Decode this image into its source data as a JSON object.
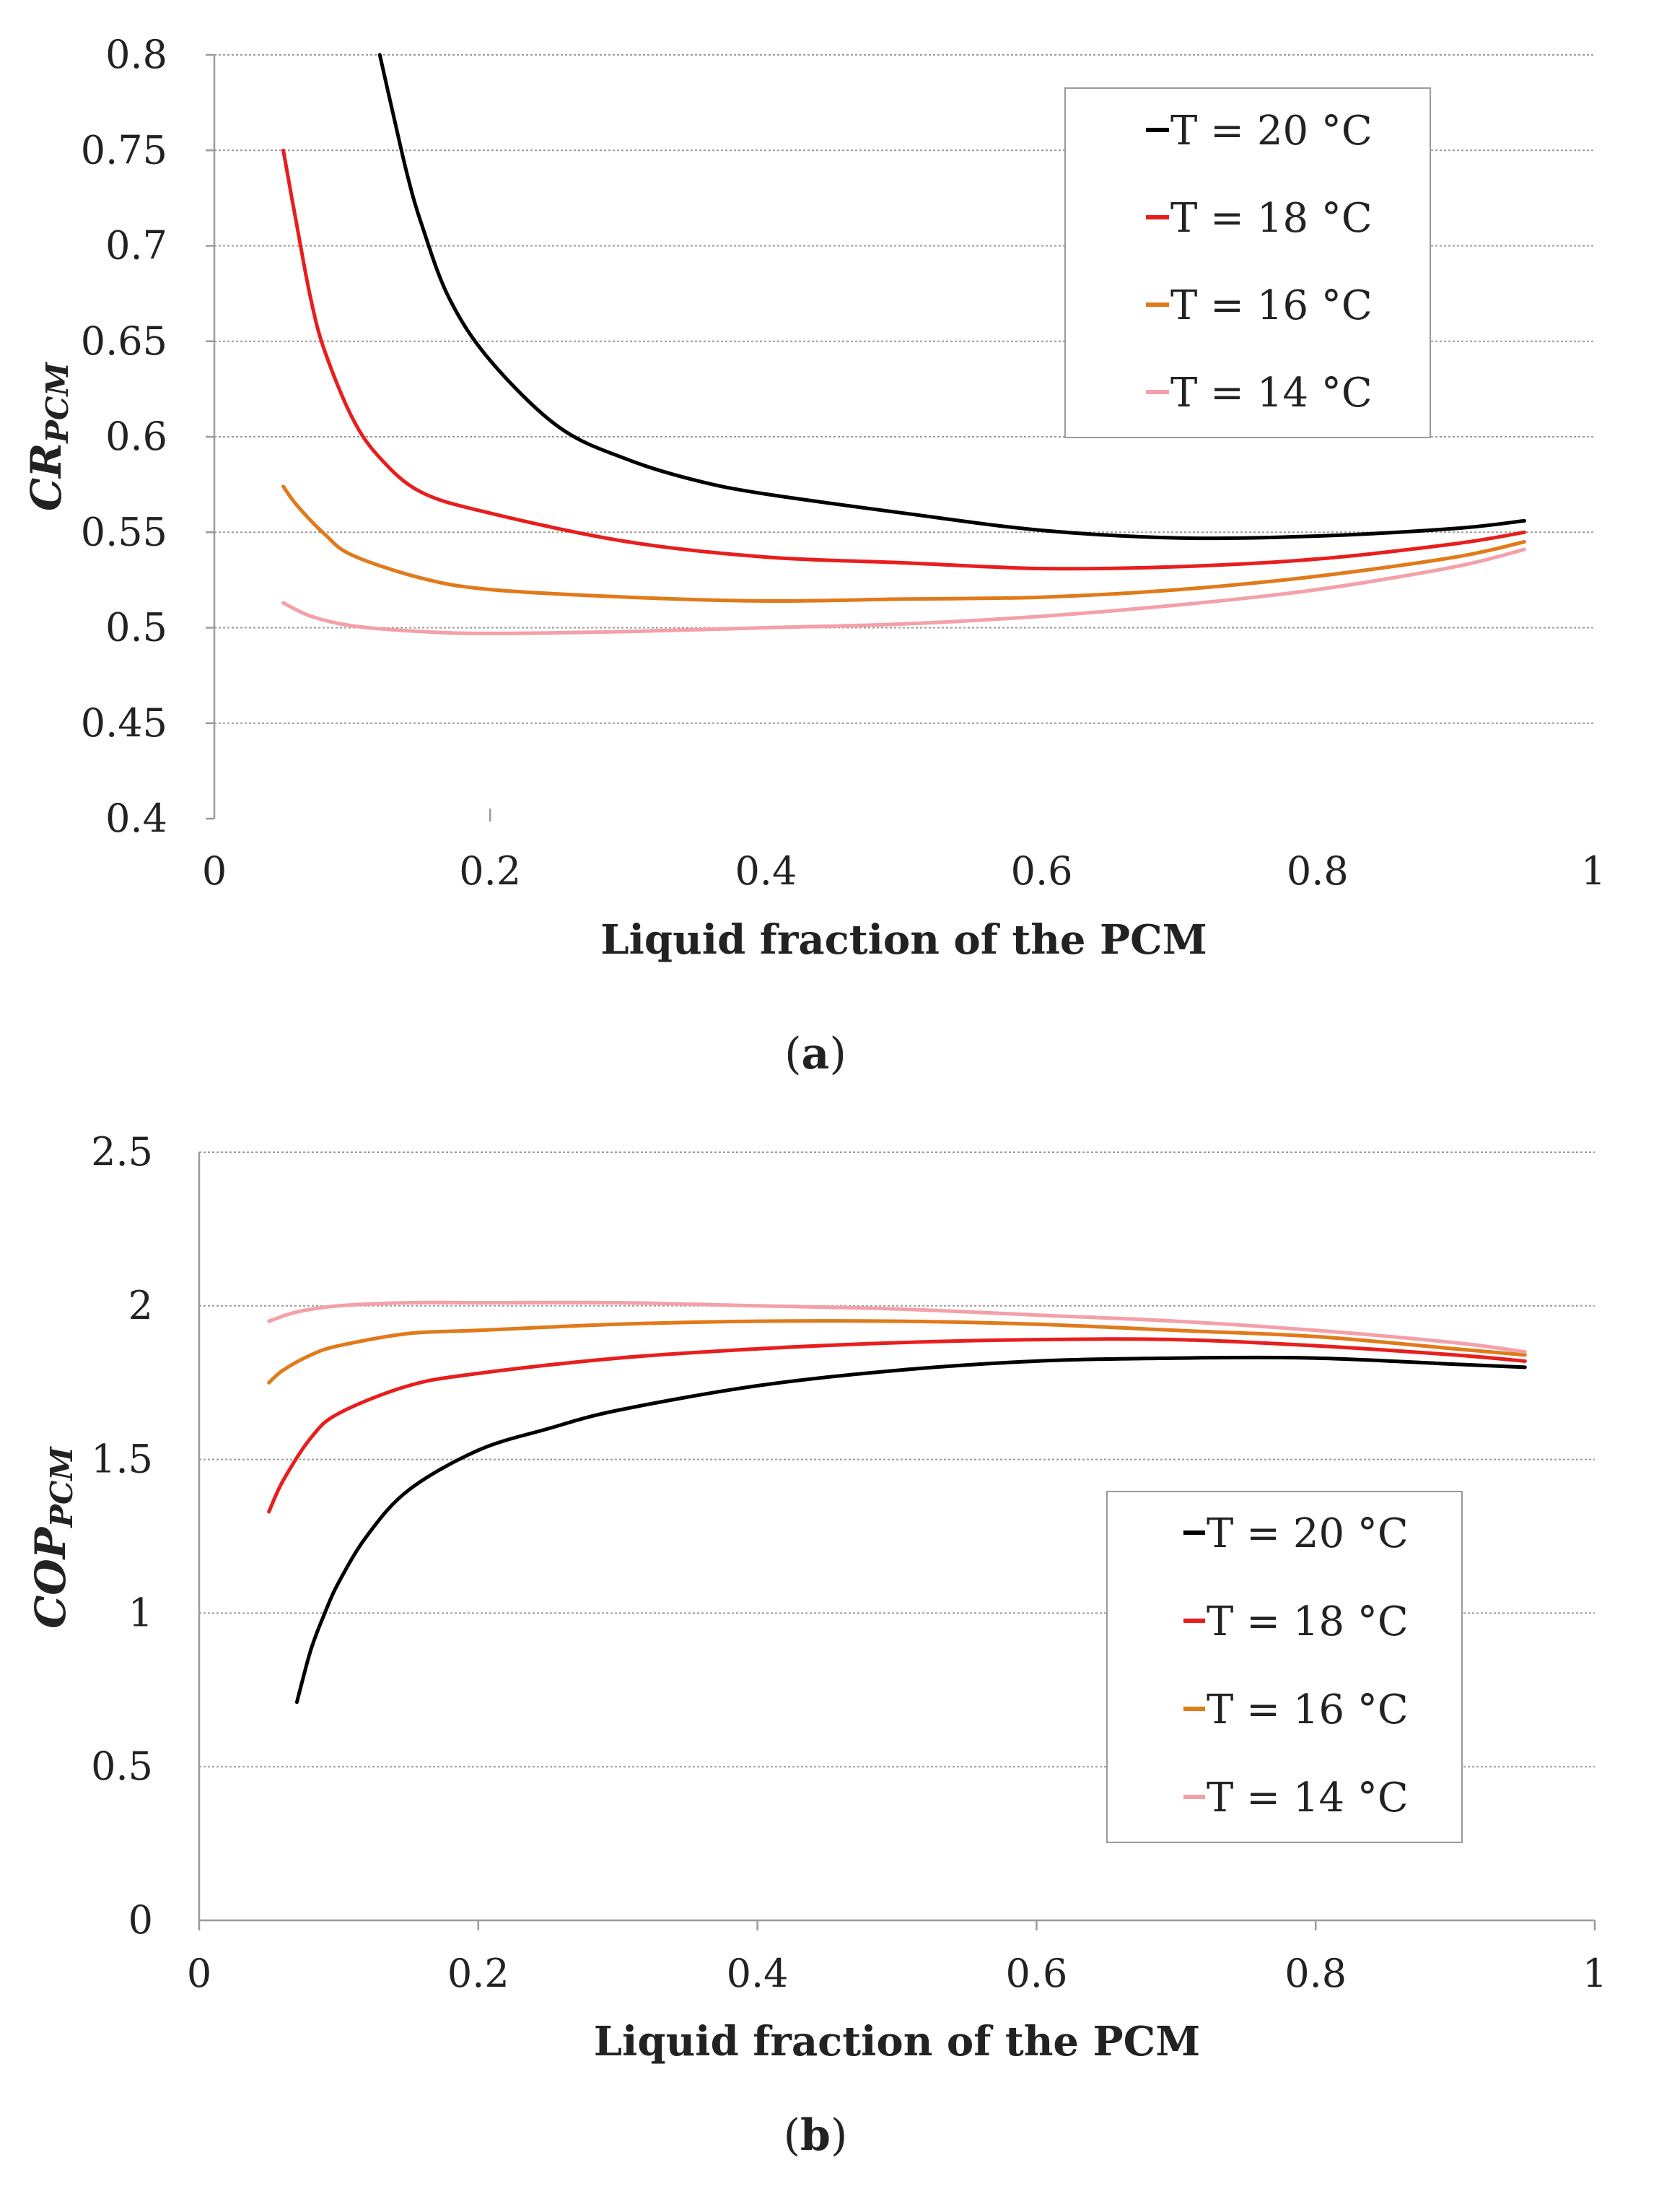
{
  "chart_data": [
    {
      "type": "line",
      "panel": "a",
      "caption_letter": "a",
      "xlabel": "Liquid fraction of the PCM",
      "ylabel": {
        "main": "CR",
        "sub": "PCM"
      },
      "xlim": [
        0,
        1
      ],
      "ylim": [
        0.4,
        0.8
      ],
      "xticks": [
        "0",
        "0.2",
        "0.4",
        "0.6",
        "0.8",
        "1"
      ],
      "yticks": [
        "0.4",
        "0.45",
        "0.5",
        "0.55",
        "0.6",
        "0.65",
        "0.7",
        "0.75",
        "0.8"
      ],
      "grid": "horizontal",
      "legend_position": "top-right",
      "series": [
        {
          "name": "T = 20 °C",
          "color": "#000000",
          "points": [
            [
              0.12,
              0.8
            ],
            [
              0.13,
              0.768
            ],
            [
              0.14,
              0.737
            ],
            [
              0.15,
              0.712
            ],
            [
              0.17,
              0.673
            ],
            [
              0.2,
              0.64
            ],
            [
              0.25,
              0.605
            ],
            [
              0.3,
              0.588
            ],
            [
              0.35,
              0.577
            ],
            [
              0.4,
              0.57
            ],
            [
              0.5,
              0.56
            ],
            [
              0.6,
              0.551
            ],
            [
              0.7,
              0.547
            ],
            [
              0.8,
              0.548
            ],
            [
              0.9,
              0.552
            ],
            [
              0.95,
              0.556
            ]
          ]
        },
        {
          "name": "T = 18 °C",
          "color": "#e81e1e",
          "points": [
            [
              0.05,
              0.75
            ],
            [
              0.06,
              0.71
            ],
            [
              0.07,
              0.672
            ],
            [
              0.08,
              0.645
            ],
            [
              0.1,
              0.61
            ],
            [
              0.12,
              0.589
            ],
            [
              0.15,
              0.571
            ],
            [
              0.2,
              0.56
            ],
            [
              0.3,
              0.545
            ],
            [
              0.4,
              0.537
            ],
            [
              0.5,
              0.534
            ],
            [
              0.6,
              0.531
            ],
            [
              0.7,
              0.532
            ],
            [
              0.8,
              0.536
            ],
            [
              0.9,
              0.544
            ],
            [
              0.95,
              0.55
            ]
          ]
        },
        {
          "name": "T = 16 °C",
          "color": "#e07a1a",
          "points": [
            [
              0.05,
              0.574
            ],
            [
              0.06,
              0.564
            ],
            [
              0.08,
              0.549
            ],
            [
              0.1,
              0.538
            ],
            [
              0.15,
              0.526
            ],
            [
              0.2,
              0.52
            ],
            [
              0.3,
              0.516
            ],
            [
              0.4,
              0.514
            ],
            [
              0.5,
              0.515
            ],
            [
              0.6,
              0.516
            ],
            [
              0.7,
              0.52
            ],
            [
              0.8,
              0.527
            ],
            [
              0.9,
              0.537
            ],
            [
              0.95,
              0.545
            ]
          ]
        },
        {
          "name": "T = 14 °C",
          "color": "#f4a0a8",
          "points": [
            [
              0.05,
              0.513
            ],
            [
              0.07,
              0.506
            ],
            [
              0.1,
              0.501
            ],
            [
              0.15,
              0.498
            ],
            [
              0.2,
              0.497
            ],
            [
              0.3,
              0.498
            ],
            [
              0.4,
              0.5
            ],
            [
              0.5,
              0.502
            ],
            [
              0.6,
              0.506
            ],
            [
              0.7,
              0.512
            ],
            [
              0.8,
              0.52
            ],
            [
              0.9,
              0.532
            ],
            [
              0.95,
              0.541
            ]
          ]
        }
      ]
    },
    {
      "type": "line",
      "panel": "b",
      "caption_letter": "b",
      "xlabel": "Liquid fraction of the PCM",
      "ylabel": {
        "main": "COP",
        "sub": "PCM"
      },
      "xlim": [
        0,
        1
      ],
      "ylim": [
        0,
        2.5
      ],
      "xticks": [
        "0",
        "0.2",
        "0.4",
        "0.6",
        "0.8",
        "1"
      ],
      "yticks": [
        "0",
        "0.5",
        "1",
        "1.5",
        "2",
        "2.5"
      ],
      "grid": "horizontal",
      "legend_position": "right",
      "series": [
        {
          "name": "T = 20 °C",
          "color": "#000000",
          "points": [
            [
              0.07,
              0.71
            ],
            [
              0.08,
              0.88
            ],
            [
              0.09,
              1.0
            ],
            [
              0.1,
              1.1
            ],
            [
              0.12,
              1.25
            ],
            [
              0.15,
              1.4
            ],
            [
              0.2,
              1.53
            ],
            [
              0.25,
              1.6
            ],
            [
              0.3,
              1.66
            ],
            [
              0.4,
              1.74
            ],
            [
              0.5,
              1.79
            ],
            [
              0.6,
              1.82
            ],
            [
              0.7,
              1.83
            ],
            [
              0.8,
              1.83
            ],
            [
              0.9,
              1.81
            ],
            [
              0.95,
              1.8
            ]
          ]
        },
        {
          "name": "T = 18 °C",
          "color": "#e81e1e",
          "points": [
            [
              0.05,
              1.33
            ],
            [
              0.06,
              1.43
            ],
            [
              0.08,
              1.57
            ],
            [
              0.1,
              1.65
            ],
            [
              0.15,
              1.74
            ],
            [
              0.2,
              1.78
            ],
            [
              0.3,
              1.83
            ],
            [
              0.4,
              1.86
            ],
            [
              0.5,
              1.88
            ],
            [
              0.6,
              1.89
            ],
            [
              0.7,
              1.89
            ],
            [
              0.8,
              1.87
            ],
            [
              0.9,
              1.84
            ],
            [
              0.95,
              1.82
            ]
          ]
        },
        {
          "name": "T = 16 °C",
          "color": "#e07a1a",
          "points": [
            [
              0.05,
              1.75
            ],
            [
              0.06,
              1.79
            ],
            [
              0.08,
              1.84
            ],
            [
              0.1,
              1.87
            ],
            [
              0.15,
              1.91
            ],
            [
              0.2,
              1.92
            ],
            [
              0.3,
              1.94
            ],
            [
              0.4,
              1.95
            ],
            [
              0.5,
              1.95
            ],
            [
              0.6,
              1.94
            ],
            [
              0.7,
              1.92
            ],
            [
              0.8,
              1.9
            ],
            [
              0.9,
              1.86
            ],
            [
              0.95,
              1.84
            ]
          ]
        },
        {
          "name": "T = 14 °C",
          "color": "#f4a0a8",
          "points": [
            [
              0.05,
              1.95
            ],
            [
              0.07,
              1.98
            ],
            [
              0.1,
              2.0
            ],
            [
              0.15,
              2.01
            ],
            [
              0.2,
              2.01
            ],
            [
              0.3,
              2.01
            ],
            [
              0.4,
              2.0
            ],
            [
              0.5,
              1.99
            ],
            [
              0.6,
              1.97
            ],
            [
              0.7,
              1.95
            ],
            [
              0.8,
              1.92
            ],
            [
              0.9,
              1.88
            ],
            [
              0.95,
              1.85
            ]
          ]
        }
      ]
    }
  ]
}
